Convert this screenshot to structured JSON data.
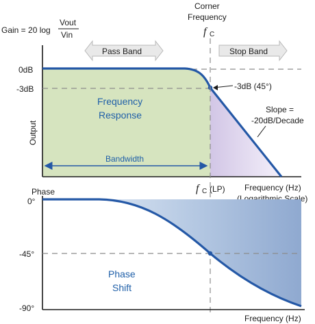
{
  "gain_formula": {
    "prefix": "Gain = 20 log",
    "numerator": "Vout",
    "denominator": "Vin"
  },
  "corner_frequency": {
    "line1": "Corner",
    "line2": "Frequency",
    "symbol": "f",
    "subscript": "C"
  },
  "pass_band": "Pass Band",
  "stop_band": "Stop Band",
  "upper_plot": {
    "y_label": "Output",
    "y_ticks": [
      "0dB",
      "-3dB"
    ],
    "corner_point_label": "-3dB (45°)",
    "slope_line1": "Slope =",
    "slope_line2": "-20dB/Decade",
    "region_line1": "Frequency",
    "region_line2": "Response",
    "bandwidth": "Bandwidth",
    "fc_lp": {
      "symbol": "f",
      "subscript": "C",
      "suffix": "(LP)"
    },
    "x_label_line1": "Frequency (Hz)",
    "x_label_line2": "(Logarithmic Scale)"
  },
  "lower_plot": {
    "title": "Phase",
    "y_ticks": [
      "0°",
      "-45°",
      "-90°"
    ],
    "region_line1": "Phase",
    "region_line2": "Shift",
    "x_label": "Frequency (Hz)"
  },
  "colors": {
    "curve": "#2458a6",
    "pass_fill": "#d6e4bf",
    "stop_fill": "#d8d0e8",
    "phase_fill": "#c6d4e8",
    "dash": "#8c8c8c",
    "arrow_fill": "#e9e9e9",
    "text_blue": "#1f5fa8"
  }
}
